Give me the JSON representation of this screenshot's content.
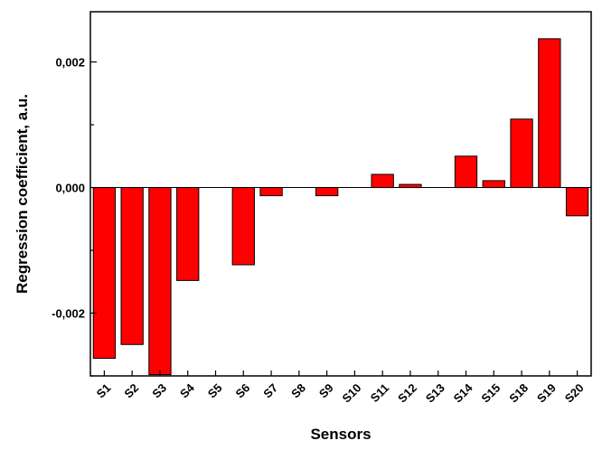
{
  "chart_data": {
    "type": "bar",
    "title": "",
    "xlabel": "Sensors",
    "ylabel": "Regression coefficient, a.u.",
    "categories": [
      "S1",
      "S2",
      "S3",
      "S4",
      "S5",
      "S6",
      "S7",
      "S8",
      "S9",
      "S10",
      "S11",
      "S12",
      "S13",
      "S14",
      "S15",
      "S18",
      "S19",
      "S20"
    ],
    "values": [
      -0.00272,
      -0.0025,
      -0.00298,
      -0.00148,
      0.0,
      -0.00123,
      -0.00013,
      0.0,
      -0.00013,
      0.0,
      0.00021,
      5e-05,
      0.0,
      0.0005,
      0.00011,
      0.00109,
      0.00237,
      -0.00045
    ],
    "ylim": [
      -0.003,
      0.0028
    ],
    "yticks": [
      -0.002,
      0.0,
      0.002
    ],
    "ytick_labels": [
      "-0,002",
      "0,000",
      "0,002"
    ],
    "bar_color": "#ff0000",
    "bar_edge_color": "#000000",
    "grid": false,
    "legend": false
  }
}
